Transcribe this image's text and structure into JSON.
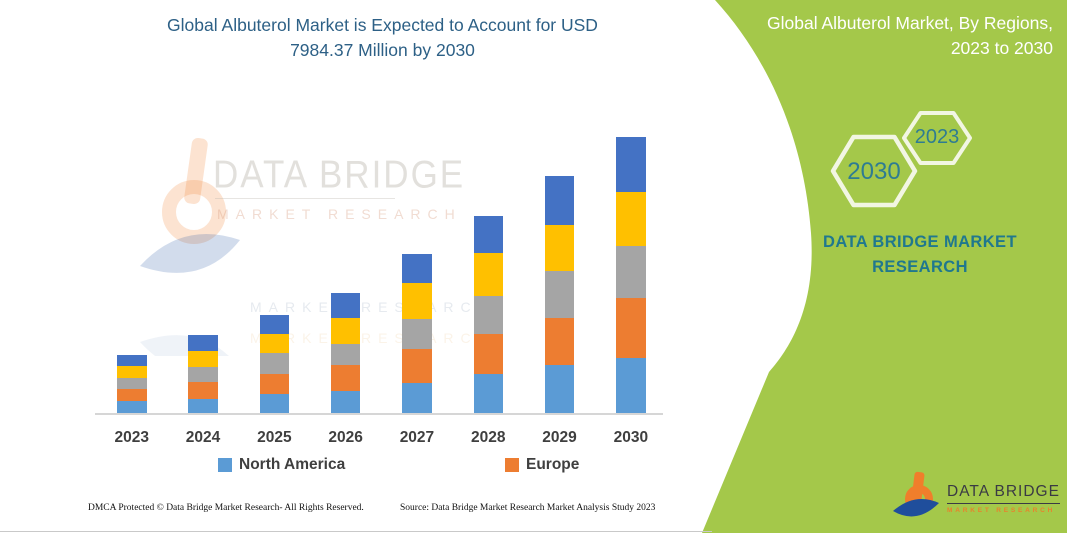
{
  "main_title": {
    "line1": "Global Albuterol Market is Expected to Account for USD",
    "line2": "7984.37 Million by 2030"
  },
  "right_panel": {
    "title_line1": "Global Albuterol Market, By Regions,",
    "title_line2": "2023 to 2030",
    "hexagons": [
      {
        "label": "2030"
      },
      {
        "label": "2023"
      }
    ],
    "brand_heading_line1": "DATA BRIDGE MARKET",
    "brand_heading_line2": "RESEARCH",
    "logo_name": "DATA BRIDGE",
    "logo_subtitle": "MARKET RESEARCH",
    "colors": {
      "background": "#A4C84A",
      "title_text": "#FFFFFF",
      "hexagon_stroke": "#F2F6E3",
      "accent_teal": "#20788E"
    }
  },
  "watermark": {
    "line1": "DATA BRIDGE",
    "line2": "MARKET RESEARCH"
  },
  "chart_data": {
    "type": "bar",
    "stacked": true,
    "title": "Global Albuterol Market is Expected to Account for USD 7984.37 Million by 2030",
    "categories": [
      "2023",
      "2024",
      "2025",
      "2026",
      "2027",
      "2028",
      "2029",
      "2030"
    ],
    "series": [
      {
        "name": "North America",
        "color": "#5B9BD5",
        "values": [
          355,
          404,
          558,
          636,
          867,
          1127,
          1387,
          1589
        ]
      },
      {
        "name": "Europe",
        "color": "#ED7D31",
        "values": [
          329,
          482,
          578,
          760,
          991,
          1156,
          1358,
          1725
        ]
      },
      {
        "name": "Unlabeled region (gray)",
        "color": "#A5A5A5",
        "values": [
          318,
          454,
          598,
          598,
          867,
          1107,
          1349,
          1502
        ]
      },
      {
        "name": "Unlabeled region (yellow)",
        "color": "#FFC000",
        "values": [
          347,
          462,
          558,
          751,
          1031,
          1234,
          1349,
          1560
        ]
      },
      {
        "name": "Unlabeled region (dark blue)",
        "color": "#4472C4",
        "values": [
          338,
          442,
          549,
          722,
          838,
          1078,
          1395,
          1609
        ]
      }
    ],
    "totals": [
      1687,
      2244,
      2841,
      3467,
      4594,
      5702,
      6838,
      7985
    ],
    "unit": "USD Million (estimated from bar heights; y-axis is unlabeled in source image)",
    "xlabel": "",
    "ylabel": "",
    "grid": false,
    "y_axis_visible": false,
    "legend_position": "bottom",
    "legend_visible_entries": [
      "North America",
      "Europe"
    ]
  },
  "legend": [
    {
      "label": "North America",
      "color": "#5B9BD5"
    },
    {
      "label": "Europe",
      "color": "#ED7D31"
    }
  ],
  "footer": {
    "left": "DMCA Protected © Data Bridge Market Research-  All Rights Reserved.",
    "right": "Source: Data Bridge Market Research  Market Analysis Study 2023"
  }
}
